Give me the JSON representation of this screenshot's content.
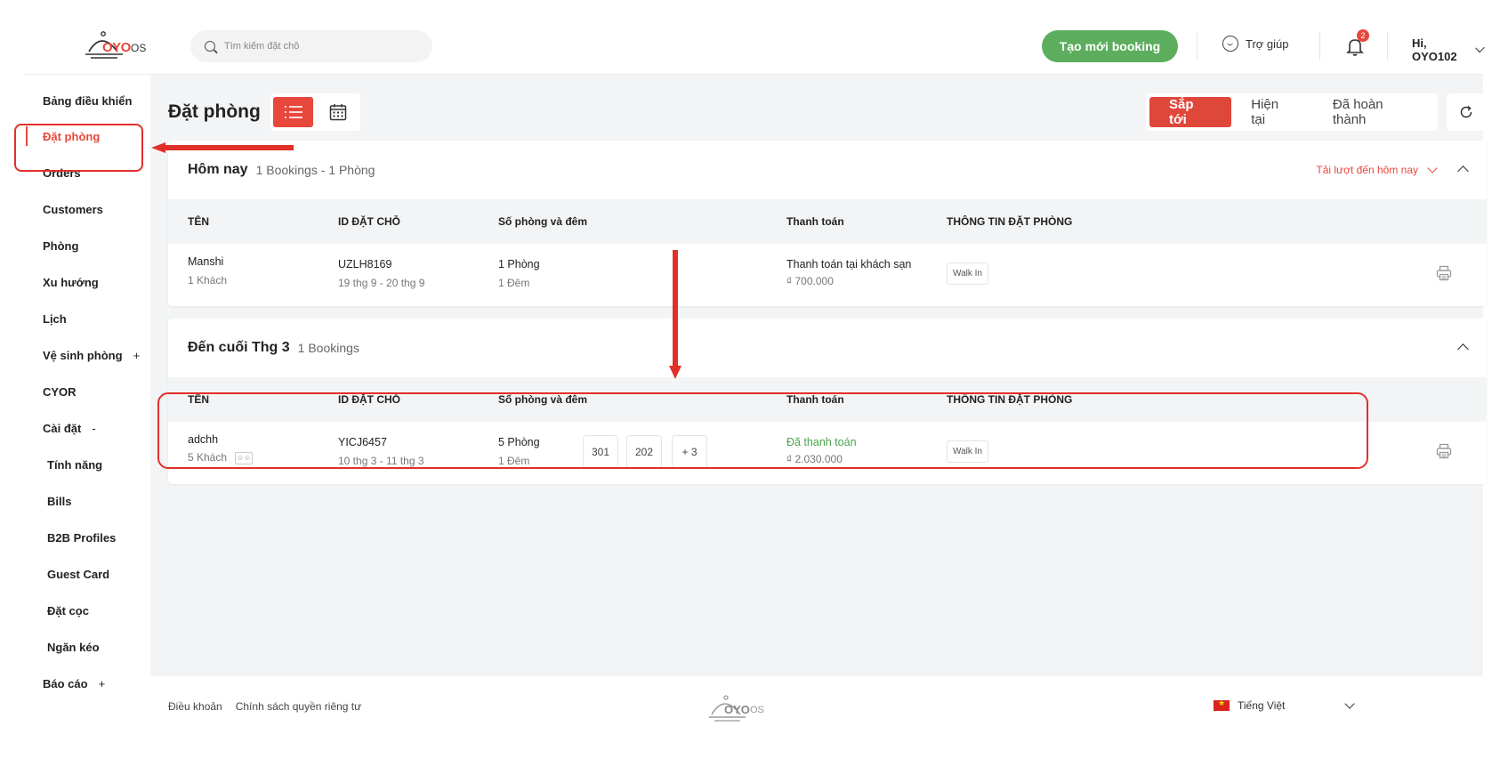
{
  "header": {
    "logo_text": "OYO",
    "logo_suffix": "OS",
    "search_placeholder": "Tìm kiếm đặt chỗ",
    "new_booking_label": "Tạo mới booking",
    "help_label": "Trợ giúp",
    "notification_count": "2",
    "user_greeting": "Hi, OYO102"
  },
  "sidebar": {
    "items": [
      {
        "label": "Bảng điều khiển"
      },
      {
        "label": "Đặt phòng"
      },
      {
        "label": "Orders"
      },
      {
        "label": "Customers"
      },
      {
        "label": "Phòng"
      },
      {
        "label": "Xu hướng"
      },
      {
        "label": "Lịch"
      },
      {
        "label": "Vệ sinh phòng",
        "suffix": "+"
      },
      {
        "label": "CYOR"
      },
      {
        "label": "Cài đặt",
        "suffix": "-"
      },
      {
        "label": "Tính năng"
      },
      {
        "label": "Bills"
      },
      {
        "label": "B2B Profiles"
      },
      {
        "label": "Guest Card"
      },
      {
        "label": "Đặt cọc"
      },
      {
        "label": "Ngăn kéo"
      },
      {
        "label": "Báo cáo",
        "suffix": "+"
      }
    ]
  },
  "main": {
    "title": "Đặt phòng",
    "status_tabs": [
      "Sắp tới",
      "Hiện tại",
      "Đã hoàn thành"
    ],
    "columns": [
      "TÊN",
      "ID ĐẶT CHỖ",
      "Số phòng và đêm",
      "Thanh toán",
      "THÔNG TIN ĐẶT PHÒNG"
    ],
    "today": {
      "title": "Hôm nay",
      "subtitle": "1 Bookings - 1 Phòng",
      "download_label": "Tải lượt đến hôm nay",
      "row": {
        "name": "Manshi",
        "guests": "1 Khách",
        "booking_id": "UZLH8169",
        "dates": "19 thg 9 - 20 thg 9",
        "rooms": "1 Phòng",
        "nights": "1 Đêm",
        "payment_status": "Thanh toán tại khách sạn",
        "amount": "₫ 700.000",
        "source": "Walk In"
      }
    },
    "month_end": {
      "title": "Đến cuối Thg 3",
      "subtitle": "1 Bookings",
      "row": {
        "name": "adchh",
        "guests": "5 Khách",
        "booking_id": "YICJ6457",
        "dates": "10 thg 3 - 11 thg 3",
        "rooms": "5 Phòng",
        "nights": "1 Đêm",
        "room_numbers": [
          "301",
          "202",
          "+ 3"
        ],
        "payment_status": "Đã thanh toán",
        "amount": "₫ 2.030.000",
        "source": "Walk In"
      }
    }
  },
  "footer": {
    "terms": "Điều khoản",
    "privacy": "Chính sách quyền riêng tư",
    "language": "Tiếng Việt"
  },
  "colors": {
    "accent": "#e8473c",
    "green": "#5cae5e",
    "annotation": "#e0302a"
  }
}
